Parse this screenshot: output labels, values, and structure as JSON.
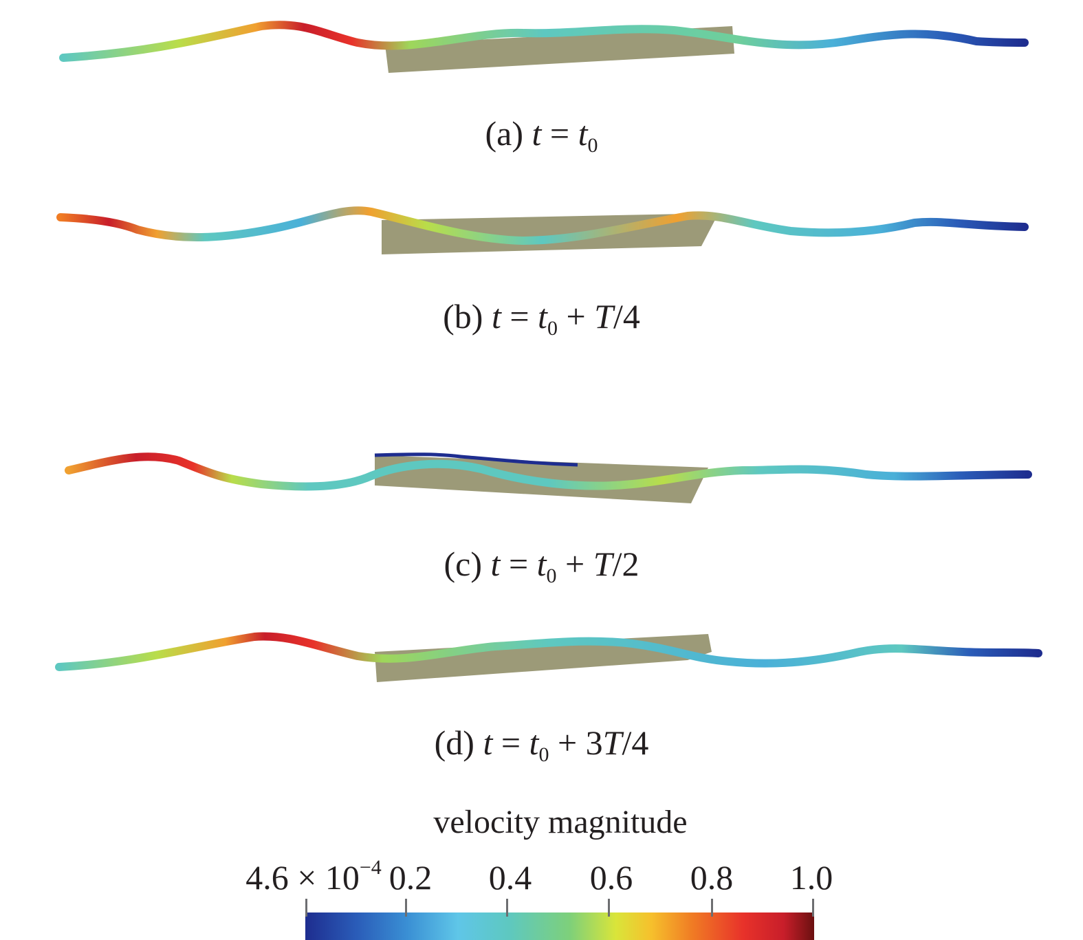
{
  "panels": [
    {
      "label": "(a)",
      "time_var": "t",
      "eq": "=",
      "t0": "t",
      "t0_sub": "0",
      "extra": ""
    },
    {
      "label": "(b)",
      "time_var": "t",
      "eq": "=",
      "t0": "t",
      "t0_sub": "0",
      "extra_plus": "+",
      "extra_coef": "",
      "extra_T": "T",
      "extra_div": "/4"
    },
    {
      "label": "(c)",
      "time_var": "t",
      "eq": "=",
      "t0": "t",
      "t0_sub": "0",
      "extra_plus": "+",
      "extra_coef": "",
      "extra_T": "T",
      "extra_div": "/2"
    },
    {
      "label": "(d)",
      "time_var": "t",
      "eq": "=",
      "t0": "t",
      "t0_sub": "0",
      "extra_plus": "+",
      "extra_coef": "3",
      "extra_T": "T",
      "extra_div": "/4"
    }
  ],
  "legend": {
    "title": "velocity magnitude",
    "ticks": [
      {
        "mantissa": "4.6 × 10",
        "exp": "−4",
        "value": 0.00046
      },
      {
        "mantissa": "0.2",
        "exp": "",
        "value": 0.2
      },
      {
        "mantissa": "0.4",
        "exp": "",
        "value": 0.4
      },
      {
        "mantissa": "0.6",
        "exp": "",
        "value": 0.6
      },
      {
        "mantissa": "0.8",
        "exp": "",
        "value": 0.8
      },
      {
        "mantissa": "1.0",
        "exp": "",
        "value": 1.0
      }
    ],
    "range": [
      0.00046,
      1.0
    ]
  },
  "colors": {
    "block": "#9c9a78",
    "low": "#1e2d8f",
    "mid": "#5ec8c0",
    "high": "#c81e2a"
  }
}
